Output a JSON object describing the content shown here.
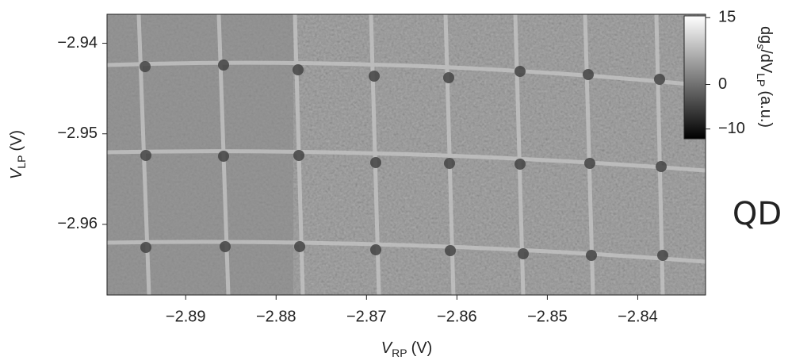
{
  "chart_data": {
    "type": "heatmap",
    "colormap": "gray",
    "xlabel": {
      "symbol": "V",
      "subscript": "RP",
      "unit": "(V)"
    },
    "ylabel": {
      "symbol": "V",
      "subscript": "LP",
      "unit": "(V)"
    },
    "xlim": [
      -2.8987,
      -2.8325
    ],
    "ylim": [
      -2.9678,
      -2.9368
    ],
    "xticks": [
      {
        "value": -2.89,
        "label": "−2.89"
      },
      {
        "value": -2.88,
        "label": "−2.88"
      },
      {
        "value": -2.87,
        "label": "−2.87"
      },
      {
        "value": -2.86,
        "label": "−2.86"
      },
      {
        "value": -2.85,
        "label": "−2.85"
      },
      {
        "value": -2.84,
        "label": "−2.84"
      }
    ],
    "yticks": [
      {
        "value": -2.94,
        "label": "−2.94"
      },
      {
        "value": -2.95,
        "label": "−2.95"
      },
      {
        "value": -2.96,
        "label": "−2.96"
      }
    ],
    "colorbar": {
      "label": {
        "prefix": "dg",
        "subscript1": "s",
        "middle": "/dV",
        "subscript2": "LP",
        "unit": "(a.u.)"
      },
      "lim": [
        -12.2,
        15.4
      ],
      "ticks": [
        15,
        0,
        {
          "value": -10,
          "label": "−10"
        }
      ]
    },
    "annotation": "QD"
  }
}
